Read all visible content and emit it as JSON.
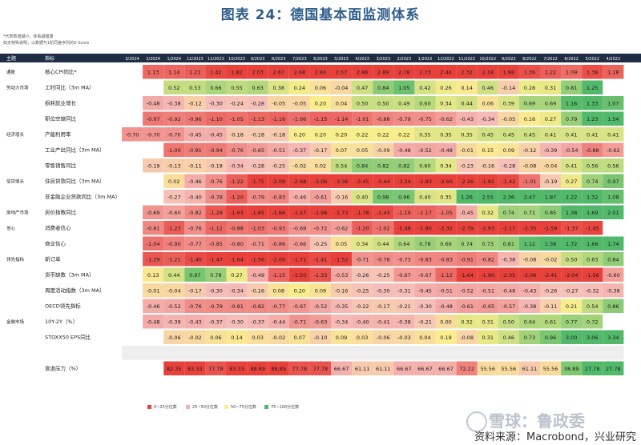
{
  "title": "图表 24：德国基本面监测体系",
  "notes": [
    "*代表数值越小，体系越健康",
    "如无特殊说明，以数据与1阶同差序列的Z-Score"
  ],
  "header": {
    "theme": "主题",
    "indicator": "指标"
  },
  "source": "资料来源：Macrobond，兴业研究",
  "watermark": "雪球：鲁政委",
  "colors": {
    "red": "#e8413b",
    "light_red": "#f4b6b2",
    "yellow": "#f9ee8a",
    "green": "#52b96a",
    "header_bg": "#1f2c46"
  },
  "legend": [
    "0~25分位数",
    "25~50分位数",
    "50~75分位数",
    "75~100分位数"
  ],
  "chart_data": {
    "type": "heatmap",
    "columns": [
      "3/2024",
      "2/2024",
      "1/2024",
      "12/2023",
      "11/2023",
      "10/2023",
      "9/2023",
      "8/2023",
      "7/2023",
      "6/2023",
      "5/2023",
      "4/2023",
      "3/2023",
      "2/2023",
      "1/2023",
      "12/2022",
      "11/2022",
      "10/2022",
      "9/2022",
      "8/2022",
      "7/2022",
      "6/2022",
      "5/2022",
      "4/2022"
    ],
    "rows": [
      {
        "theme": "通胀",
        "label": "核心CPI同比*",
        "start": 1,
        "values": [
          1.13,
          1.14,
          1.21,
          1.42,
          1.82,
          2.03,
          2.67,
          2.68,
          2.84,
          2.57,
          2.86,
          2.89,
          2.78,
          2.73,
          2.44,
          2.32,
          2.18,
          1.98,
          1.36,
          1.22,
          1.09,
          1.38,
          1.18
        ]
      },
      {
        "theme": "劳动力市场",
        "label": "工时同比（3m MA）",
        "start": 2,
        "values": [
          0.52,
          0.53,
          0.66,
          0.55,
          0.63,
          0.38,
          0.24,
          0.06,
          -0.04,
          0.47,
          0.84,
          1.05,
          0.42,
          0.26,
          0.14,
          0.46,
          -0.14,
          0.28,
          0.31,
          0.81,
          1.25
        ]
      },
      {
        "theme": "",
        "label": "损耗就业增长",
        "start": 1,
        "values": [
          -0.48,
          -0.38,
          -0.12,
          -0.3,
          -0.24,
          -0.28,
          -0.05,
          -0.05,
          0.2,
          0.04,
          0.5,
          0.5,
          0.49,
          0.6,
          0.34,
          0.44,
          0.06,
          0.39,
          0.69,
          0.69,
          1.16,
          1.33,
          1.07
        ]
      },
      {
        "theme": "",
        "label": "职位空缺同比",
        "start": 1,
        "values": [
          -0.97,
          -0.92,
          -0.96,
          -1.1,
          -1.05,
          -1.13,
          -1.16,
          -1.06,
          -1.15,
          -1.14,
          -1.01,
          -0.88,
          -0.79,
          -0.75,
          -0.62,
          -0.43,
          -0.34,
          -0.05,
          0.16,
          0.27,
          0.79,
          1.23,
          1.54
        ]
      },
      {
        "theme": "经济增长",
        "label": "产能利用率",
        "start": 0,
        "values": [
          -0.7,
          -0.7,
          -0.7,
          -0.45,
          -0.45,
          -0.18,
          -0.18,
          -0.18,
          0.2,
          0.2,
          0.2,
          0.22,
          0.22,
          0.22,
          0.35,
          0.35,
          0.35,
          0.45,
          0.45,
          0.45,
          0.41,
          0.41,
          0.41,
          0.41
        ]
      },
      {
        "theme": "",
        "label": "工业产出同比（3m MA）",
        "start": 2,
        "values": [
          -1.0,
          -0.91,
          -0.94,
          -0.76,
          -0.65,
          -0.51,
          -0.37,
          -0.17,
          0.07,
          0.05,
          -0.09,
          -0.48,
          -0.52,
          -0.48,
          -0.01,
          0.15,
          0.09,
          -0.12,
          -0.39,
          -0.54,
          -0.88,
          -0.62
        ]
      },
      {
        "theme": "",
        "label": "零售销售同比",
        "start": 1,
        "values": [
          -0.19,
          -0.13,
          -0.11,
          -0.18,
          -0.34,
          -0.28,
          -0.25,
          -0.02,
          0.02,
          0.54,
          0.84,
          0.82,
          0.82,
          0.6,
          0.34,
          -0.23,
          -0.16,
          -0.28,
          -0.08,
          -0.04,
          0.41,
          0.56,
          0.56
        ]
      },
      {
        "theme": "信贷增长",
        "label": "住房贷款同比（3m MA）",
        "start": 2,
        "values": [
          0.02,
          -0.46,
          -0.76,
          -1.22,
          -1.75,
          -2.08,
          -2.68,
          -3.06,
          -3.36,
          -3.45,
          -3.44,
          -3.24,
          -2.93,
          -2.6,
          -2.26,
          -1.82,
          -1.42,
          -1.01,
          -0.19,
          0.27,
          0.74,
          0.97
        ]
      },
      {
        "theme": "",
        "label": "非金融企业贷款同比（3m MA）",
        "start": 2,
        "values": [
          -0.27,
          -0.4,
          -0.78,
          -1.2,
          -0.79,
          -0.83,
          -0.46,
          -0.61,
          -0.16,
          0.4,
          0.98,
          0.96,
          0.4,
          0.35,
          1.26,
          2.55,
          2.36,
          2.47,
          1.87,
          2.22,
          1.32,
          1.08
        ]
      },
      {
        "theme": "房地产市场",
        "label": "房价指数同比",
        "start": 1,
        "values": [
          -0.69,
          -0.6,
          -0.82,
          -1.28,
          -1.63,
          -1.65,
          -1.66,
          -1.57,
          -1.96,
          -1.73,
          -1.78,
          -1.43,
          -1.19,
          -1.17,
          -1.05,
          -0.45,
          0.32,
          0.74,
          0.71,
          0.85,
          1.38,
          1.69,
          2.01
        ]
      },
      {
        "theme": "信心",
        "label": "消费者信心",
        "start": 1,
        "values": [
          -0.81,
          -1.23,
          -0.76,
          -1.12,
          -0.98,
          -1.03,
          -0.93,
          -0.69,
          -0.72,
          -0.62,
          -1.2,
          -1.02,
          -1.49,
          -1.9,
          -2.32,
          -2.79,
          -2.93,
          -2.17,
          -2.35,
          -1.59,
          -1.37,
          -1.45
        ]
      },
      {
        "theme": "",
        "label": "商业信心",
        "start": 1,
        "values": [
          -1.04,
          -0.9,
          -0.77,
          -0.85,
          -0.8,
          -0.71,
          -0.86,
          -0.66,
          -0.25,
          0.05,
          0.34,
          0.44,
          0.64,
          0.78,
          0.69,
          0.74,
          0.73,
          0.81,
          1.12,
          1.38,
          1.72,
          1.66,
          1.74
        ]
      },
      {
        "theme": "领先指标",
        "label": "新订单",
        "start": 1,
        "values": [
          -1.29,
          -1.21,
          -1.4,
          -1.47,
          -1.64,
          -1.56,
          -2.0,
          -1.71,
          -1.41,
          -1.52,
          -0.71,
          -0.78,
          -0.73,
          -0.83,
          -0.83,
          -0.91,
          -0.82,
          -0.38,
          -0.08,
          -0.02,
          0.5,
          0.63,
          0.84
        ]
      },
      {
        "theme": "",
        "label": "货币缺数（3m MA）",
        "start": 1,
        "values": [
          0.13,
          0.44,
          0.97,
          0.78,
          0.27,
          -0.49,
          -1.15,
          -1.5,
          -1.33,
          -0.53,
          -0.26,
          -0.25,
          -0.67,
          -0.67,
          -1.12,
          -1.64,
          -1.9,
          -2.05,
          -2.06,
          -2.41,
          -2.04,
          -1.56,
          -0.6
        ]
      },
      {
        "theme": "",
        "label": "周度活动指数（3m MA）",
        "start": 1,
        "values": [
          -0.01,
          -0.04,
          -0.17,
          -0.3,
          -0.34,
          -0.16,
          0.08,
          0.2,
          0.09,
          -0.16,
          -0.25,
          -0.3,
          -0.31,
          -0.45,
          -0.51,
          -0.52,
          -0.51,
          -0.48,
          -0.43,
          -0.26,
          -0.27,
          -0.32,
          -0.38
        ]
      },
      {
        "theme": "",
        "label": "OECD领先指标",
        "start": 1,
        "values": [
          -0.46,
          -0.52,
          -0.76,
          -0.79,
          -0.81,
          -0.82,
          -0.77,
          -0.67,
          -0.52,
          -0.35,
          -0.22,
          -0.17,
          -0.21,
          -0.3,
          -0.48,
          -0.61,
          -0.65,
          -0.57,
          -0.38,
          -0.11,
          0.21,
          0.54,
          0.86
        ]
      },
      {
        "theme": "金融市场",
        "label": "10Y-2Y（%）",
        "start": 1,
        "values": [
          -0.48,
          -0.39,
          -0.43,
          -0.37,
          -0.3,
          -0.37,
          -0.44,
          -0.71,
          -0.63,
          -0.34,
          -0.4,
          -0.41,
          -0.38,
          -0.21,
          0.0,
          0.32,
          0.31,
          0.5,
          0.64,
          0.61,
          0.77,
          0.72
        ]
      },
      {
        "theme": "",
        "label": "STOXX50 EPS同比",
        "start": 2,
        "values": [
          -0.06,
          -0.02,
          0.06,
          0.14,
          0.03,
          -0.02,
          0.07,
          -0.1,
          0.09,
          0.03,
          -0.06,
          -0.03,
          0.04,
          0.19,
          -0.08,
          0.31,
          0.46,
          0.73,
          0.96,
          3.0,
          3.06,
          3.34
        ]
      },
      {
        "theme": "",
        "label": "",
        "start": 0,
        "values": []
      },
      {
        "theme": "",
        "label": "衰退压力（%）",
        "start": 2,
        "values": [
          82.35,
          83.33,
          77.78,
          83.33,
          88.89,
          88.89,
          77.78,
          77.78,
          66.67,
          61.11,
          61.11,
          66.67,
          66.67,
          66.67,
          72.22,
          55.56,
          55.56,
          61.11,
          55.56,
          38.89,
          27.78,
          27.78
        ]
      }
    ]
  }
}
